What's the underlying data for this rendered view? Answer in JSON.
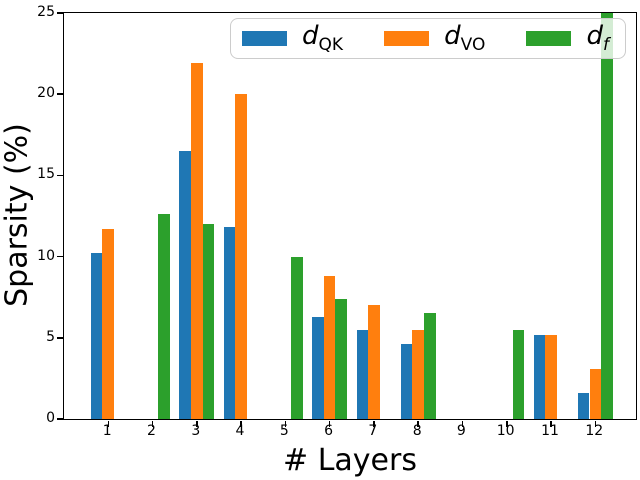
{
  "chart_data": {
    "type": "bar",
    "title": "",
    "xlabel": "# Layers",
    "ylabel": "Sparsity (%)",
    "categories": [
      1,
      2,
      3,
      4,
      5,
      6,
      7,
      8,
      9,
      10,
      11,
      12
    ],
    "series": [
      {
        "name": "d_QK",
        "label_base": "d",
        "label_sub": "QK",
        "color": "#1f77b4",
        "values": [
          10.2,
          0,
          16.5,
          11.8,
          0,
          6.3,
          5.5,
          4.6,
          0,
          0,
          5.2,
          1.6
        ]
      },
      {
        "name": "d_VO",
        "label_base": "d",
        "label_sub": "VO",
        "color": "#ff7f0e",
        "values": [
          11.7,
          0,
          21.9,
          20.0,
          0,
          8.8,
          7.0,
          5.5,
          0,
          0,
          5.2,
          3.1
        ]
      },
      {
        "name": "d_f",
        "label_base": "d",
        "label_sub": "f",
        "color": "#2ca02c",
        "values": [
          0,
          12.6,
          12.0,
          0,
          10.0,
          7.4,
          0,
          6.5,
          0,
          5.5,
          0,
          25
        ]
      }
    ],
    "note": "layer-12 d_f bar is clipped at the top of the axis (value >= 25)",
    "ylim": [
      0,
      25
    ],
    "yticks": [
      0,
      5,
      10,
      15,
      20,
      25
    ],
    "legend_position": "upper center",
    "grid": false,
    "axis_color": "#000000"
  }
}
